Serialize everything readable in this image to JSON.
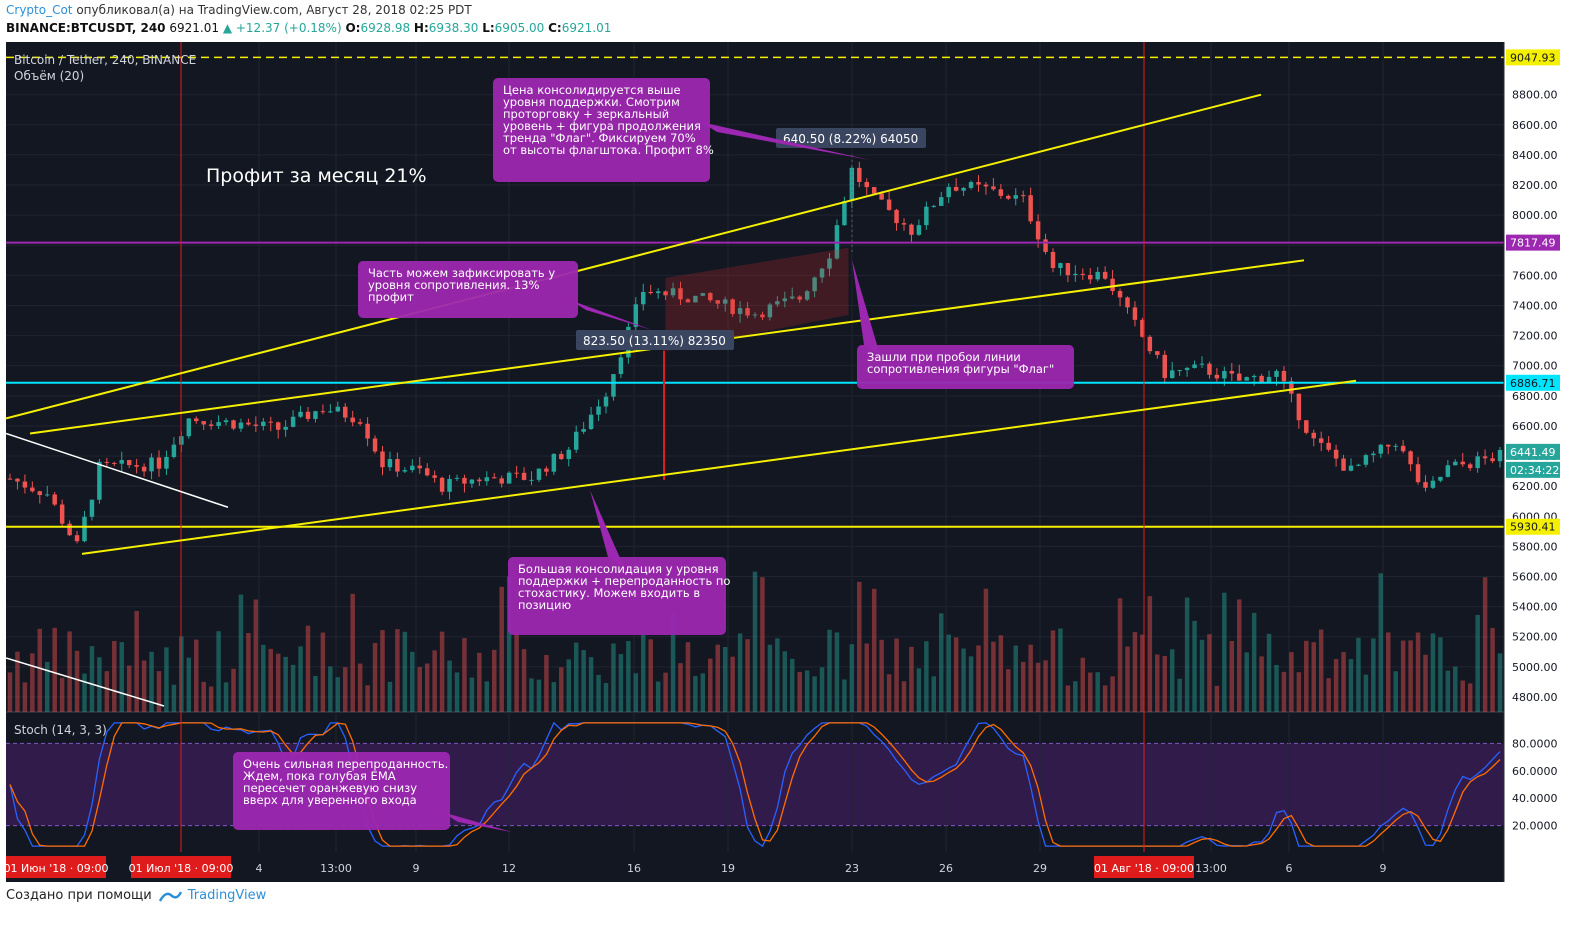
{
  "header": {
    "user": "Crypto_Cot",
    "published": "опубликовал(а) на TradingView.com, Август 28, 2018 02:25 PDT",
    "symbol": "BINANCE:BTCUSDT, 240",
    "last": "6921.01",
    "change": "▲ +12.37 (+0.18%)",
    "o_label": "O:",
    "o": "6928.98",
    "h_label": "H:",
    "h": "6938.30",
    "l_label": "L:",
    "l": "6905.00",
    "c_label": "C:",
    "c": "6921.01"
  },
  "footer": {
    "created": "Создано при помощи",
    "brand": "TradingView"
  },
  "colors": {
    "bg": "#131722",
    "up": "#26a69a",
    "down": "#ef5350",
    "yellow": "#f5f000",
    "purple": "#9c27b0",
    "cyan": "#00e5ff",
    "annotation": "#9c27b0"
  },
  "chart_data": {
    "type": "candlestick",
    "title": "Bitcoin / Tether, 240, BINANCE",
    "volume_label": "Объём (20)",
    "stoch_label": "Stoch (14, 3, 3)",
    "profit_text": "Профит за месяц 21%",
    "ylim": [
      4700,
      9150
    ],
    "y_ticks": [
      "8800.00",
      "8600.00",
      "8400.00",
      "8200.00",
      "8000.00",
      "7600.00",
      "7400.00",
      "7200.00",
      "7000.00",
      "6800.00",
      "6600.00",
      "6400.00",
      "6200.00",
      "6000.00",
      "5800.00",
      "5600.00",
      "5400.00",
      "5200.00",
      "5000.00",
      "4800.00"
    ],
    "stoch_ticks": [
      "80.0000",
      "60.0000",
      "40.0000",
      "20.0000"
    ],
    "x_labels": [
      "4",
      "13:00",
      "9",
      "12",
      "16",
      "19",
      "23",
      "26",
      "29",
      "13:00",
      "6",
      "9"
    ],
    "x_highlight": [
      "01 Июн '18 · 09:00",
      "01 Июл '18 · 09:00",
      "01 Авг '18 · 09:00"
    ],
    "price_tags": [
      {
        "value": "9047.93",
        "kind": "yellow"
      },
      {
        "value": "7817.49",
        "kind": "purple"
      },
      {
        "value": "6886.71",
        "kind": "cyan"
      },
      {
        "value": "6441.49",
        "kind": "green"
      },
      {
        "value": "02:34:22",
        "kind": "green"
      },
      {
        "value": "5930.41",
        "kind": "yellow"
      }
    ],
    "levels": {
      "resistance_top": 9047.93,
      "purple": 7817.49,
      "cyan": 6886.71,
      "support": 5930.41
    },
    "measure_labels": [
      "640.50 (8.22%) 64050",
      "823.50 (13.11%) 82350"
    ],
    "annotations": [
      "Цена консолидируется выше уровня поддержки. Смотрим проторговку + зеркальный уровень + фигура продолжения тренда \"Флаг\". Фиксируем 70% от высоты флагштока. Профит 8%",
      "Часть можем зафиксировать у уровня сопротивления. 13% профит",
      "Зашли при пробои линии сопротивления фигуры \"Флаг\"",
      "Большая консолидация у уровня поддержки + перепроданность по стохастику. Можем входить в позицию",
      "Очень сильная перепроданность. Ждем, пока голубая EMA пересечет оранжевую снизу вверх для уверенного входа"
    ],
    "close_path": [
      [
        0,
        6250
      ],
      [
        5,
        6150
      ],
      [
        9,
        5800
      ],
      [
        12,
        6320
      ],
      [
        20,
        6350
      ],
      [
        24,
        6650
      ],
      [
        30,
        6620
      ],
      [
        36,
        6580
      ],
      [
        42,
        6720
      ],
      [
        47,
        6650
      ],
      [
        50,
        6350
      ],
      [
        55,
        6300
      ],
      [
        58,
        6200
      ],
      [
        63,
        6250
      ],
      [
        70,
        6260
      ],
      [
        75,
        6450
      ],
      [
        80,
        6830
      ],
      [
        85,
        7500
      ],
      [
        92,
        7450
      ],
      [
        100,
        7350
      ],
      [
        106,
        7450
      ],
      [
        110,
        7750
      ],
      [
        113,
        8300
      ],
      [
        116,
        8100
      ],
      [
        121,
        7900
      ],
      [
        126,
        8200
      ],
      [
        131,
        8170
      ],
      [
        136,
        8100
      ],
      [
        140,
        7650
      ],
      [
        147,
        7600
      ],
      [
        150,
        7350
      ],
      [
        155,
        6950
      ],
      [
        160,
        6980
      ],
      [
        165,
        6900
      ],
      [
        170,
        6950
      ],
      [
        175,
        6500
      ],
      [
        180,
        6300
      ],
      [
        186,
        6500
      ],
      [
        190,
        6150
      ],
      [
        193,
        6320
      ],
      [
        200,
        6400
      ]
    ]
  }
}
